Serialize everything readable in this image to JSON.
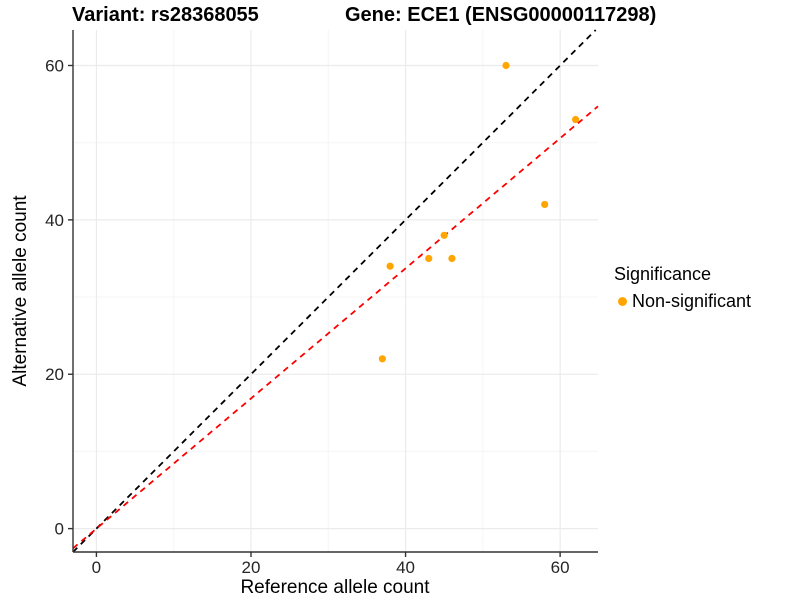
{
  "figure": {
    "title_variant": "Variant: rs28368055",
    "title_gene": "Gene: ECE1 (ENSG00000117298)"
  },
  "chart_data": {
    "type": "scatter",
    "title": "Variant: rs28368055   Gene: ECE1 (ENSG00000117298)",
    "xlabel": "Reference allele count",
    "ylabel": "Alternative allele count",
    "xlim": [
      -3.03,
      64.9
    ],
    "ylim": [
      -3.03,
      64.6
    ],
    "x_ticks": [
      0,
      20,
      40,
      60
    ],
    "y_ticks": [
      0,
      20,
      40,
      60
    ],
    "x_minor_ticks": [
      10,
      30,
      50
    ],
    "y_minor_ticks": [
      10,
      30,
      50
    ],
    "grid": "major+minor",
    "series": [
      {
        "name": "Non-significant",
        "color": "#FFA500",
        "points": [
          [
            53,
            60
          ],
          [
            62,
            53
          ],
          [
            58,
            42
          ],
          [
            45,
            38
          ],
          [
            43,
            35
          ],
          [
            46,
            35
          ],
          [
            38,
            34
          ],
          [
            37,
            22
          ]
        ]
      }
    ],
    "ref_lines": [
      {
        "name": "identity",
        "slope": 1,
        "intercept": 0,
        "color": "#000000",
        "style": "dashed"
      },
      {
        "name": "fit",
        "slope": 0.843,
        "intercept": 0,
        "color": "#FF0000",
        "style": "dashed"
      }
    ],
    "legend": {
      "title": "Significance",
      "position": "right",
      "items": [
        {
          "label": "Non-significant",
          "color": "#FFA500"
        }
      ]
    },
    "theme": {
      "grid_major_color": "#EBEBEB",
      "grid_minor_color": "#F5F5F5",
      "axis_line_color": "#333333",
      "tick_label_color": "#262626",
      "background": "#FFFFFF"
    }
  }
}
